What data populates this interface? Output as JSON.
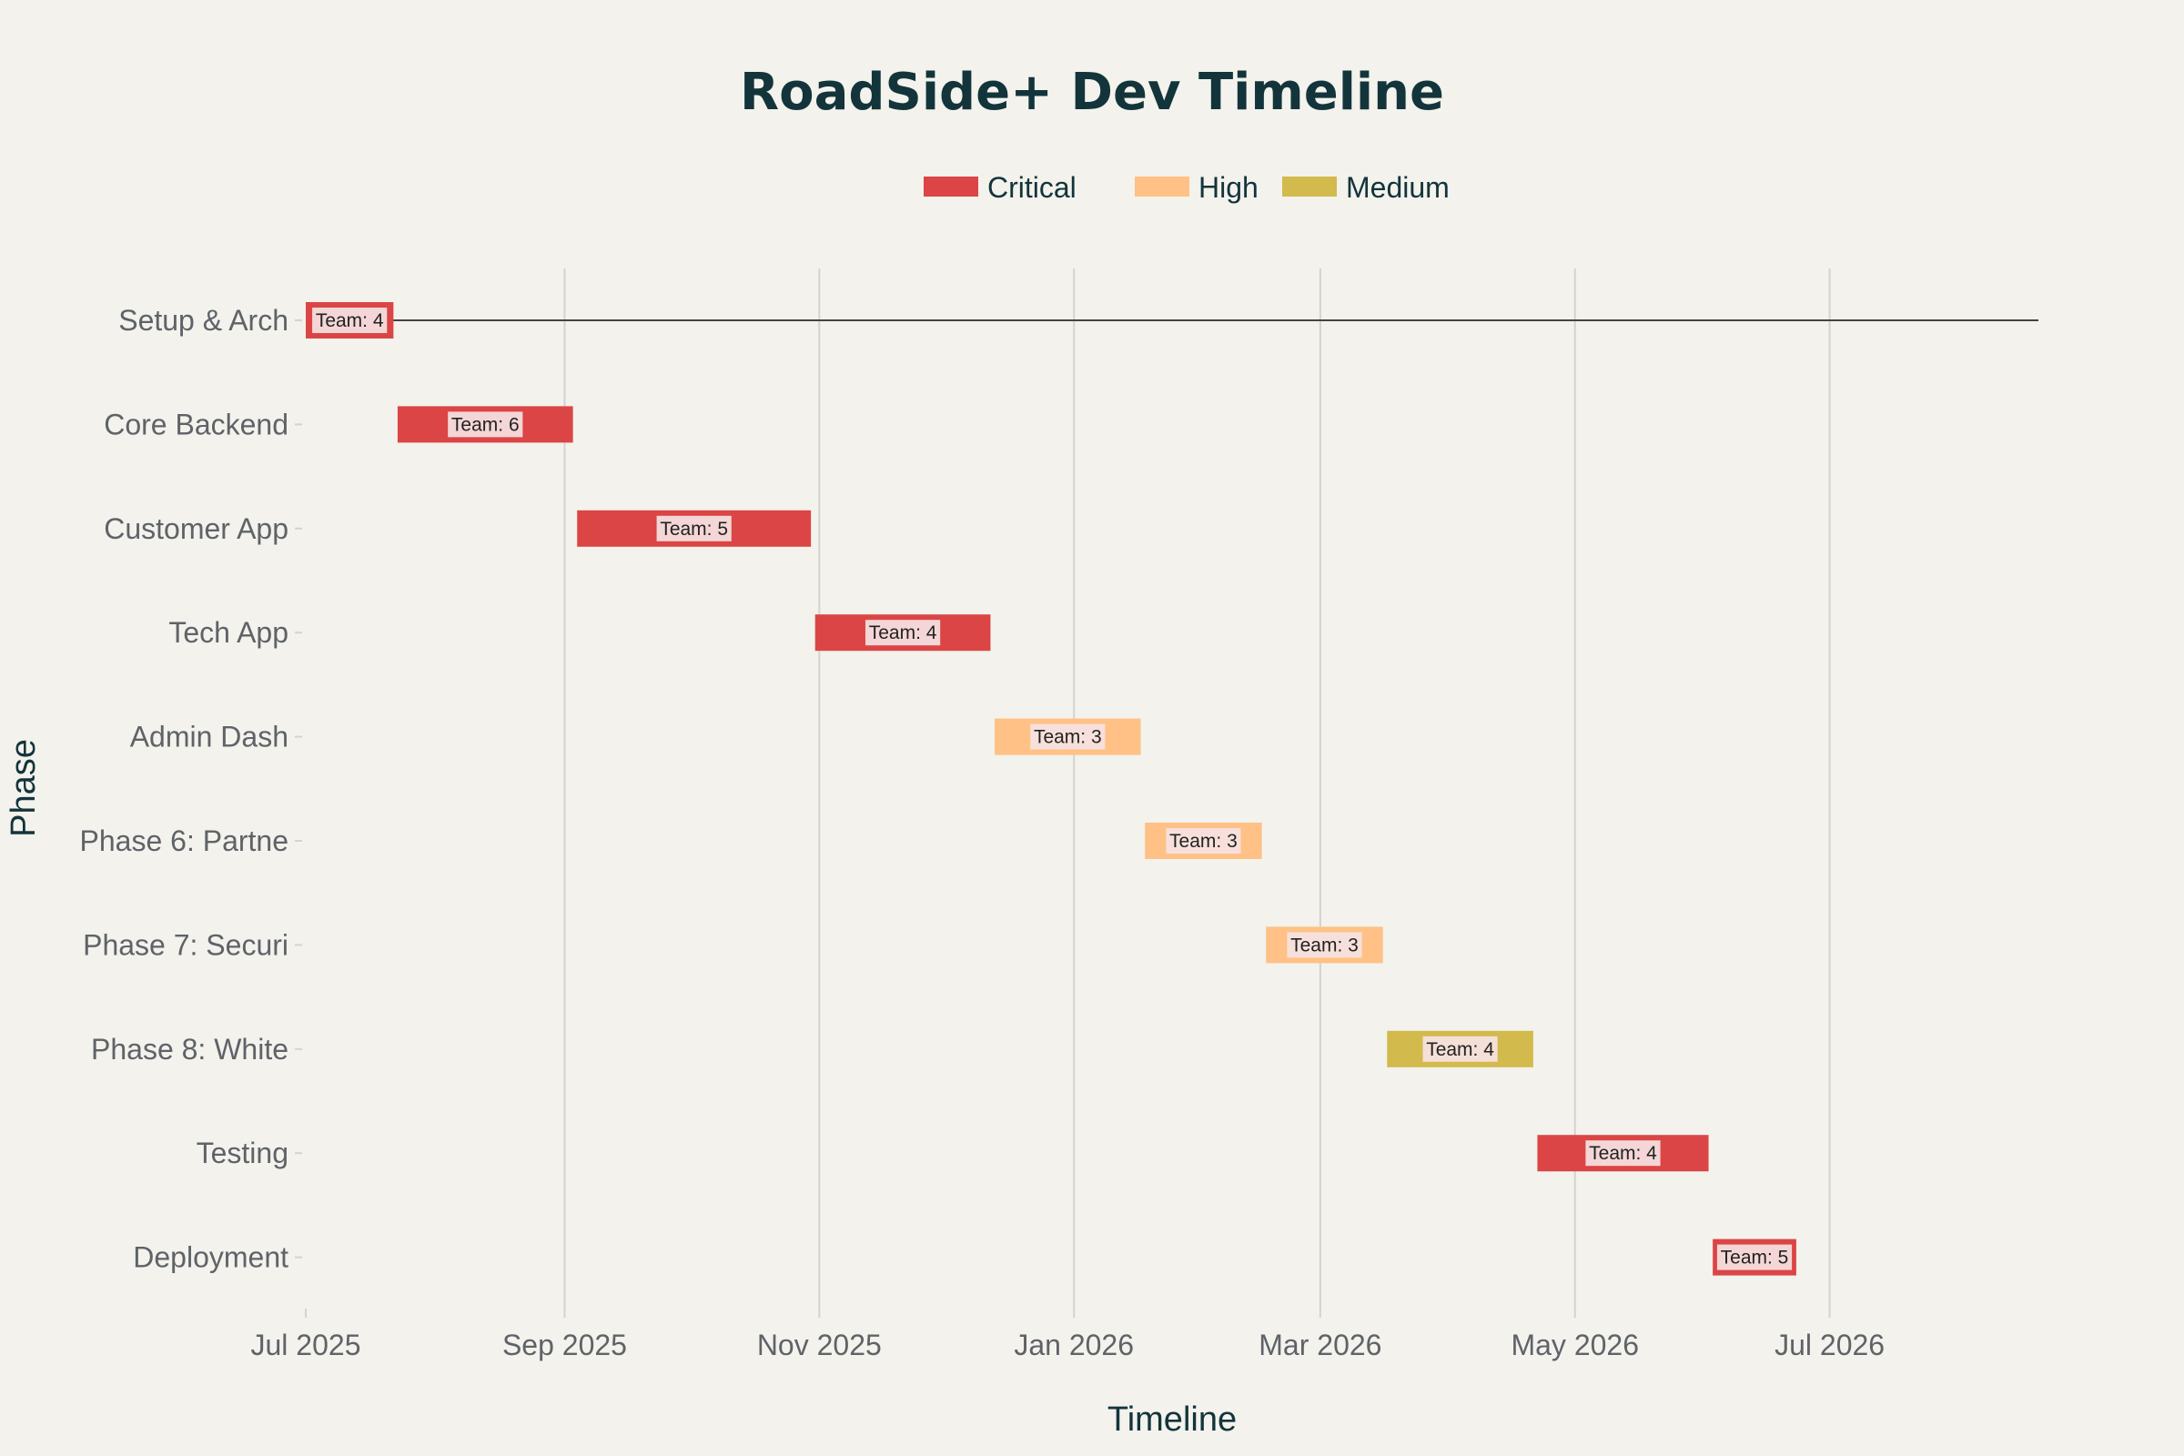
{
  "chart_data": {
    "type": "bar",
    "orientation": "horizontal-gantt",
    "title": "RoadSide+ Dev Timeline",
    "xlabel": "Timeline",
    "ylabel": "Phase",
    "x_range": [
      "2025-07-01",
      "2026-08-20"
    ],
    "x_ticks": [
      {
        "date": "2025-07-01",
        "label": "Jul 2025"
      },
      {
        "date": "2025-09-01",
        "label": "Sep 2025"
      },
      {
        "date": "2025-11-01",
        "label": "Nov 2025"
      },
      {
        "date": "2026-01-01",
        "label": "Jan 2026"
      },
      {
        "date": "2026-03-01",
        "label": "Mar 2026"
      },
      {
        "date": "2026-05-01",
        "label": "May 2026"
      },
      {
        "date": "2026-07-01",
        "label": "Jul 2026"
      }
    ],
    "grid": true,
    "legend": {
      "placement": "top-center",
      "entries": [
        {
          "name": "Critical",
          "color": "#db4545"
        },
        {
          "name": "High",
          "color": "#ffc185"
        },
        {
          "name": "Medium",
          "color": "#d2ba4c"
        }
      ]
    },
    "tasks": [
      {
        "phase": "Setup & Arch",
        "start": "2025-07-01",
        "end": "2025-07-22",
        "priority": "Critical",
        "label": "Team: 4"
      },
      {
        "phase": "Core Backend",
        "start": "2025-07-23",
        "end": "2025-09-03",
        "priority": "Critical",
        "label": "Team: 6"
      },
      {
        "phase": "Customer App",
        "start": "2025-09-04",
        "end": "2025-10-30",
        "priority": "Critical",
        "label": "Team: 5"
      },
      {
        "phase": "Tech App",
        "start": "2025-10-31",
        "end": "2025-12-12",
        "priority": "Critical",
        "label": "Team: 4"
      },
      {
        "phase": "Admin Dash",
        "start": "2025-12-13",
        "end": "2026-01-17",
        "priority": "High",
        "label": "Team: 3"
      },
      {
        "phase": "Phase 6: Partne",
        "start": "2026-01-18",
        "end": "2026-02-15",
        "priority": "High",
        "label": "Team: 3"
      },
      {
        "phase": "Phase 7: Securi",
        "start": "2026-02-16",
        "end": "2026-03-16",
        "priority": "High",
        "label": "Team: 3"
      },
      {
        "phase": "Phase 8: White ",
        "start": "2026-03-17",
        "end": "2026-04-21",
        "priority": "Medium",
        "label": "Team: 4"
      },
      {
        "phase": "Testing",
        "start": "2026-04-22",
        "end": "2026-06-02",
        "priority": "Critical",
        "label": "Team: 4"
      },
      {
        "phase": "Deployment",
        "start": "2026-06-03",
        "end": "2026-06-23",
        "priority": "Critical",
        "label": "Team: 5"
      }
    ],
    "reference_line": {
      "row": "Setup & Arch",
      "start": "2025-07-01",
      "end": "2026-08-20",
      "color": "#444444"
    }
  }
}
